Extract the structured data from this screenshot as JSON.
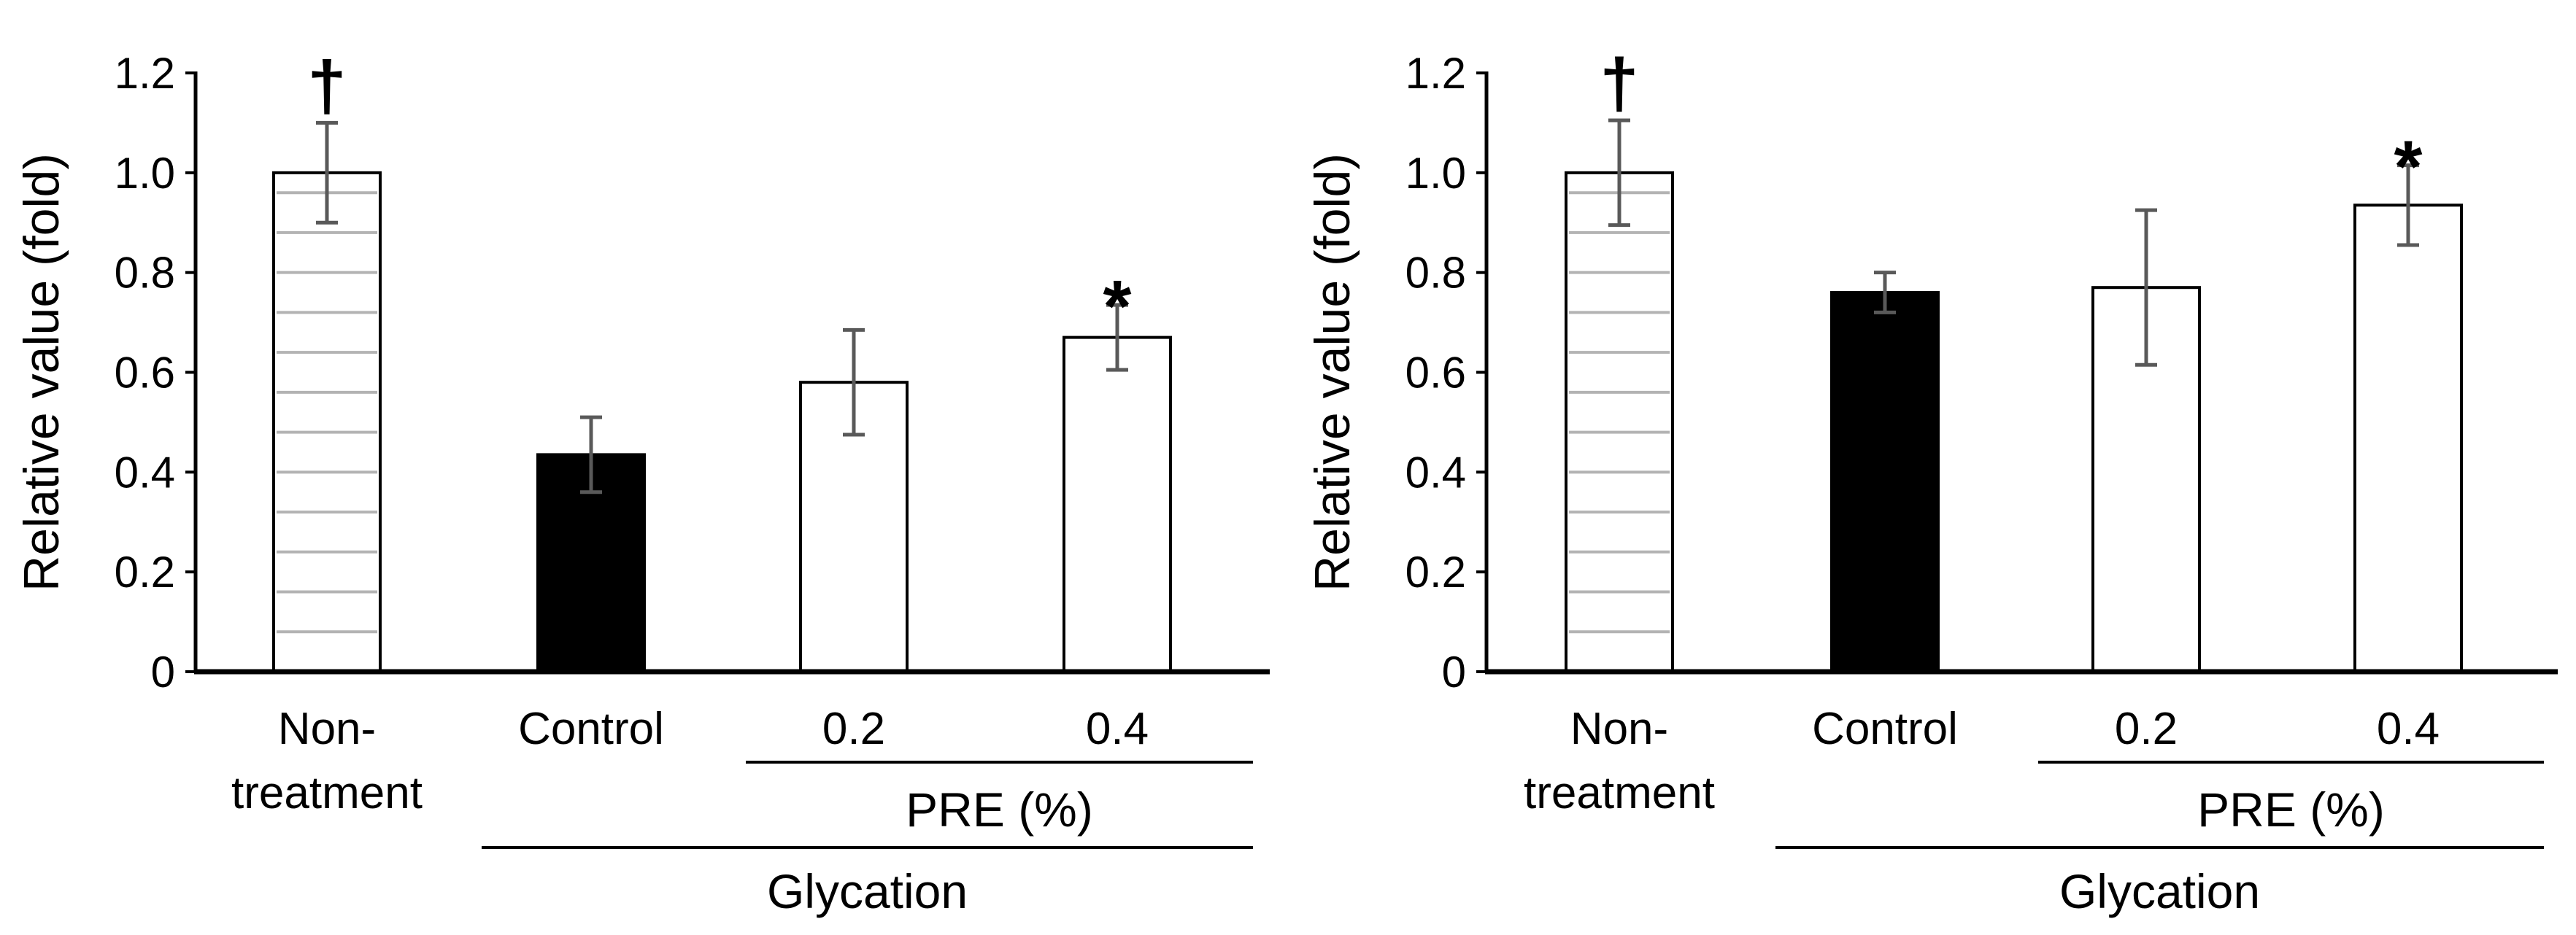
{
  "chart_data": [
    {
      "type": "bar",
      "panel": "left",
      "title": "",
      "xlabel": "",
      "ylabel": "Relative value (fold)",
      "ylim": [
        0,
        1.2
      ],
      "yticks": [
        "0",
        "0.2",
        "0.4",
        "0.6",
        "0.8",
        "1.0",
        "1.2"
      ],
      "categories": [
        {
          "line1": "Non-",
          "line2": "treatment"
        },
        {
          "line1": "Control",
          "line2": ""
        },
        {
          "line1": "0.2",
          "line2": ""
        },
        {
          "line1": "0.4",
          "line2": ""
        }
      ],
      "values": [
        1.0,
        0.435,
        0.58,
        0.67
      ],
      "errors": [
        0.1,
        0.075,
        0.105,
        0.065
      ],
      "fills": [
        "hatched",
        "#000000",
        "#ffffff",
        "#ffffff"
      ],
      "marks": [
        "†",
        "",
        "",
        "*"
      ],
      "groups": {
        "pre_label": "PRE (%)",
        "glycation_label": "Glycation"
      }
    },
    {
      "type": "bar",
      "panel": "right",
      "title": "",
      "xlabel": "",
      "ylabel": "Relative value (fold)",
      "ylim": [
        0,
        1.2
      ],
      "yticks": [
        "0",
        "0.2",
        "0.4",
        "0.6",
        "0.8",
        "1.0",
        "1.2"
      ],
      "categories": [
        {
          "line1": "Non-",
          "line2": "treatment"
        },
        {
          "line1": "Control",
          "line2": ""
        },
        {
          "line1": "0.2",
          "line2": ""
        },
        {
          "line1": "0.4",
          "line2": ""
        }
      ],
      "values": [
        1.0,
        0.76,
        0.77,
        0.935
      ],
      "errors": [
        0.105,
        0.04,
        0.155,
        0.08
      ],
      "fills": [
        "hatched",
        "#000000",
        "#ffffff",
        "#ffffff"
      ],
      "marks": [
        "†",
        "",
        "",
        "*"
      ],
      "groups": {
        "pre_label": "PRE (%)",
        "glycation_label": "Glycation"
      }
    }
  ]
}
